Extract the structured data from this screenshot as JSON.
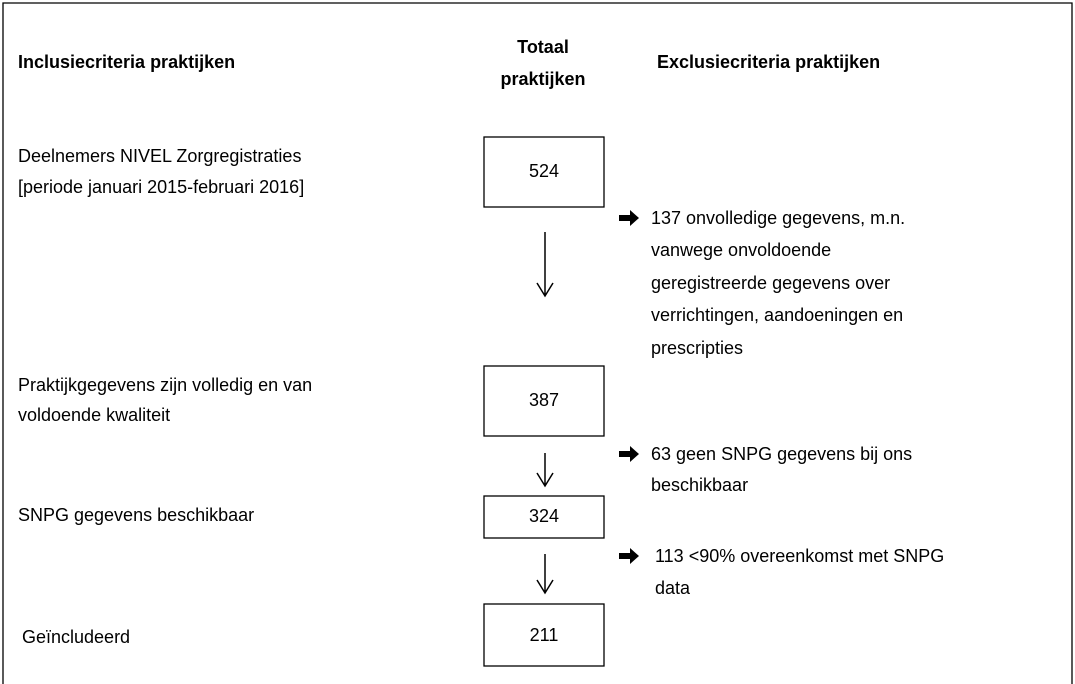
{
  "header": {
    "inclusion": "Inclusiecriteria praktijken",
    "total": [
      "Totaal",
      "praktijken"
    ],
    "exclusion": "Exclusiecriteria praktijken"
  },
  "steps": [
    {
      "label": [
        "Deelnemers NIVEL Zorgregistraties",
        "[periode januari 2015-februari 2016]"
      ],
      "count": 524
    },
    {
      "label": [
        "Praktijkgegevens zijn volledig en van",
        "voldoende kwaliteit"
      ],
      "count": 387
    },
    {
      "label": [
        "SNPG gegevens beschikbaar"
      ],
      "count": 324
    },
    {
      "label": [
        "Geïncludeerd"
      ],
      "count": 211
    }
  ],
  "exclusions": [
    [
      "137 onvolledige gegevens, m.n.",
      "vanwege onvoldoende",
      "geregistreerde gegevens over",
      "verrichtingen, aandoeningen en",
      "prescripties"
    ],
    [
      "63 geen SNPG gegevens bij ons",
      "beschikbaar"
    ],
    [
      "113 <90% overeenkomst met SNPG",
      "data"
    ]
  ]
}
